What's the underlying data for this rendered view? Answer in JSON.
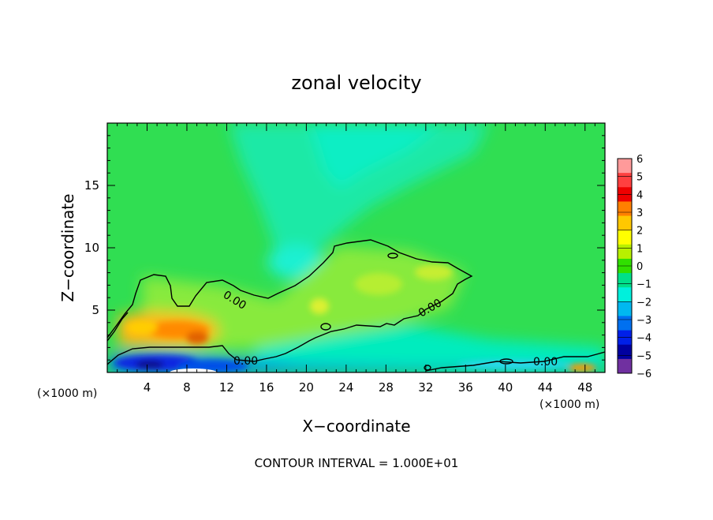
{
  "chart_data": {
    "type": "heatmap",
    "title": "zonal velocity",
    "xlabel": "X−coordinate",
    "ylabel": "Z−coordinate",
    "x_unit": "(×1000 m)",
    "y_unit": "(×1000 m)",
    "xlim": [
      0,
      50
    ],
    "ylim": [
      0,
      20
    ],
    "x_ticks": [
      4,
      8,
      12,
      16,
      20,
      24,
      28,
      32,
      36,
      40,
      44,
      48
    ],
    "x_tick_labels": [
      "4",
      "8",
      "12",
      "16",
      "20",
      "24",
      "28",
      "32",
      "36",
      "40",
      "44",
      "48"
    ],
    "y_ticks": [
      5,
      10,
      15
    ],
    "y_tick_labels": [
      "5",
      "10",
      "15"
    ],
    "colorbar": {
      "ticks": [
        6,
        5,
        4,
        3,
        2,
        1,
        0,
        -1,
        -2,
        -3,
        -4,
        -5,
        -6
      ],
      "tick_labels": [
        "6",
        "5",
        "4",
        "3",
        "2",
        "1",
        "0",
        "−1",
        "−2",
        "−3",
        "−4",
        "−5",
        "−6"
      ],
      "colors": [
        "#ff9a9a",
        "#ff4040",
        "#ee0000",
        "#ff8000",
        "#ffc800",
        "#ffff00",
        "#b8f000",
        "#30e000",
        "#00e08a",
        "#00f0dc",
        "#00b8f0",
        "#0070f0",
        "#0020e8",
        "#0000a0",
        "#7030a0"
      ]
    },
    "contour_level": "0.00",
    "contour_labels": [
      "0.00",
      "0.00",
      "0.00",
      "0.00"
    ],
    "features": [
      {
        "region": "low-level jet near x 2-13, z 2.5-4.5",
        "value": 2.5
      },
      {
        "region": "near-surface flow x 3-14, z 0-1",
        "value": -4
      },
      {
        "region": "upper core x 17-21, z 8-9",
        "value": -2
      },
      {
        "region": "mid layer x 20-36, z 4-9",
        "value": 1
      }
    ],
    "footer": "CONTOUR INTERVAL = 1.000E+01"
  }
}
